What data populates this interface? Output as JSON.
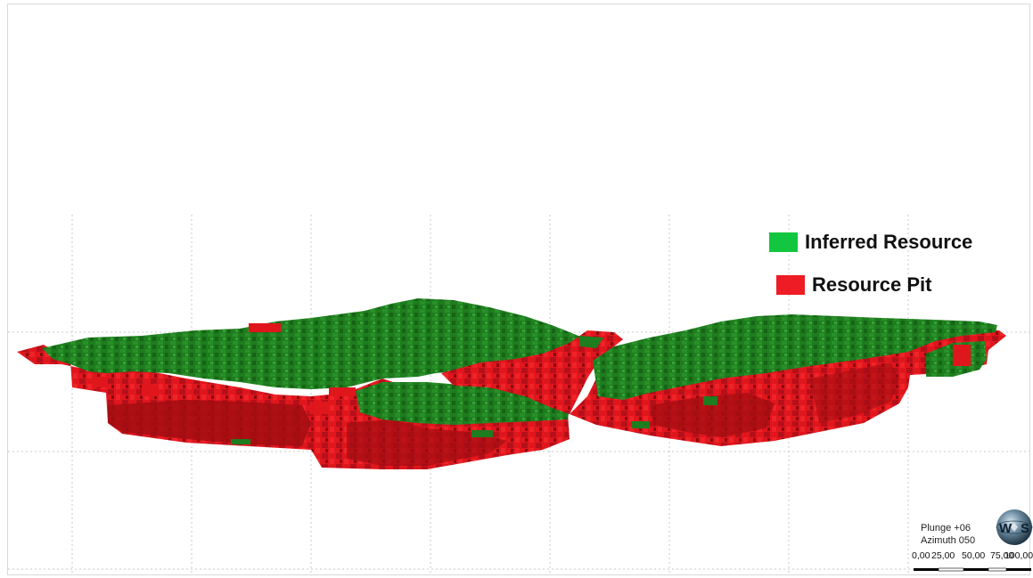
{
  "legend": {
    "items": [
      {
        "label": "Inferred Resource",
        "color": "#12c640"
      },
      {
        "label": "Resource Pit",
        "color": "#ee1c24"
      }
    ]
  },
  "orientation": {
    "plunge": "Plunge +06",
    "azimuth": "Azimuth 050"
  },
  "compass": {
    "left_letter": "W",
    "right_letter": "S"
  },
  "scale_bar": {
    "labels": [
      "0,00",
      "25,00",
      "50,00",
      "75,00",
      "100,00"
    ]
  },
  "colors": {
    "model_green": "#1f7a1f",
    "model_green_dark": "#155c15",
    "model_red": "#e0161d",
    "model_red_dark": "#a10d12",
    "grid": "#c8c8c8"
  }
}
